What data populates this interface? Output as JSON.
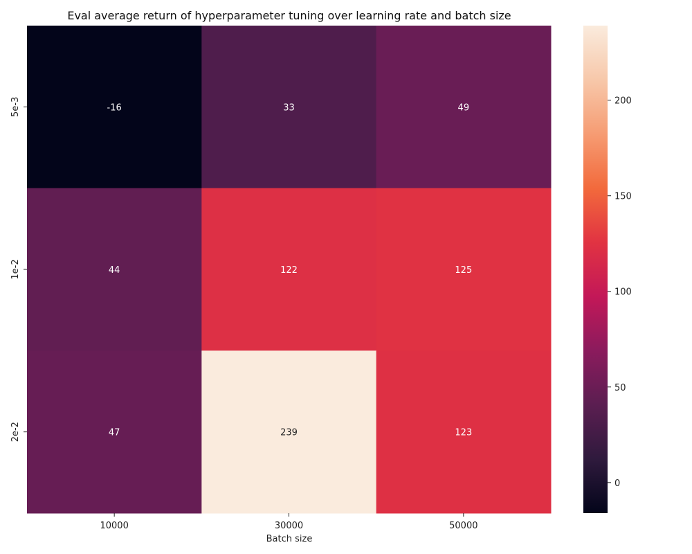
{
  "chart_data": {
    "type": "heatmap",
    "title": "Eval average return of hyperparameter tuning over learning rate and batch size",
    "xlabel": "Batch size",
    "ylabel": "",
    "x_categories": [
      "10000",
      "30000",
      "50000"
    ],
    "y_categories": [
      "5e-3",
      "1e-2",
      "2e-2"
    ],
    "values": [
      [
        -16,
        33,
        49
      ],
      [
        44,
        122,
        125
      ],
      [
        47,
        239,
        123
      ]
    ],
    "annotations": [
      [
        "-16",
        "33",
        "49"
      ],
      [
        "44",
        "122",
        "125"
      ],
      [
        "47",
        "239",
        "123"
      ]
    ],
    "colorbar": {
      "vmin": -16,
      "vmax": 239,
      "ticks": [
        0,
        50,
        100,
        150,
        200
      ],
      "colormap": "rocket",
      "stops": [
        "#03051a",
        "#2f1a3d",
        "#5b1e51",
        "#8b1b5d",
        "#c31858",
        "#e13342",
        "#f26a3c",
        "#f69c73",
        "#f7c8aa",
        "#faebdd"
      ]
    },
    "legend": "colorbar-right",
    "grid": false
  }
}
